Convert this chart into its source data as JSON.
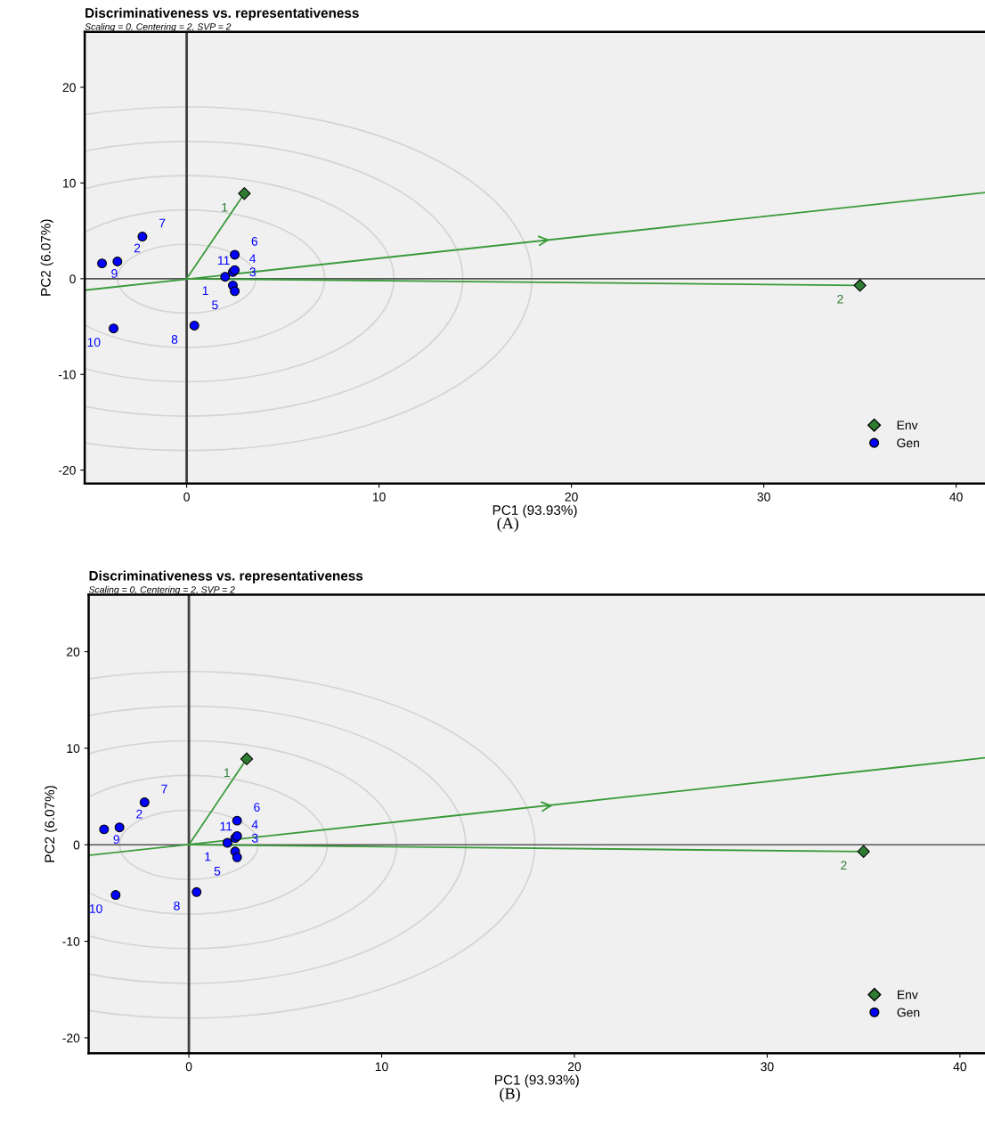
{
  "chart_data": [
    {
      "type": "scatter",
      "title": "Discriminativeness vs. representativeness",
      "subtitle": "Scaling = 0, Centering = 2, SVP = 2",
      "xlabel": "PC1 (93.93%)",
      "ylabel": "PC2 (6.07%)",
      "xlim": [
        -5.3,
        41.5
      ],
      "ylim": [
        -21.4,
        25.8
      ],
      "xticks": [
        0,
        10,
        20,
        30,
        40
      ],
      "yticks": [
        -20,
        -10,
        0,
        10,
        20
      ],
      "grid": false,
      "legend": "bottom right",
      "ref_lines": [
        {
          "axis": "x",
          "value": 0,
          "color": "#404040"
        },
        {
          "axis": "y",
          "value": 0,
          "color": "#555555"
        }
      ],
      "series": [
        {
          "type": "line",
          "color": "#3a9a3a",
          "x": [
            -5.3,
            41.5
          ],
          "values": [
            -1.2,
            9.0
          ]
        },
        {
          "type": "line",
          "color": "#3a9a3a",
          "x": [
            0,
            3.0
          ],
          "values": [
            0,
            8.9
          ]
        },
        {
          "type": "line",
          "color": "#3a9a3a",
          "x": [
            0,
            35.0
          ],
          "values": [
            0,
            -0.7
          ]
        },
        {
          "type": "scatter",
          "name": "Env",
          "color": "#2e7d32",
          "marker": "diamond",
          "x": [
            3.0,
            35.0
          ],
          "values": [
            8.9,
            -0.7
          ]
        },
        {
          "type": "scatter",
          "name": "Gen",
          "color": "#0000ff",
          "marker": "circle",
          "x": [
            2.0,
            -3.6,
            2.4,
            2.4,
            2.5,
            2.5,
            -2.3,
            0.4,
            -4.4,
            -3.8,
            2.5
          ],
          "values": [
            0.2,
            1.8,
            -0.7,
            0.7,
            -1.3,
            2.5,
            4.4,
            -4.9,
            1.6,
            -5.2,
            0.9
          ]
        }
      ],
      "annotations": [
        {
          "text": "1",
          "x": 3.0,
          "y": 8.9
        },
        {
          "text": "2",
          "x": 35.0,
          "y": -0.7
        },
        {
          "text": "1",
          "x": 2.0,
          "y": 0.2
        },
        {
          "text": "2",
          "x": -3.6,
          "y": 1.8
        },
        {
          "text": "3",
          "x": 2.4,
          "y": -0.7
        },
        {
          "text": "4",
          "x": 2.4,
          "y": 0.7
        },
        {
          "text": "5",
          "x": 2.5,
          "y": -1.3
        },
        {
          "text": "6",
          "x": 2.5,
          "y": 2.5
        },
        {
          "text": "7",
          "x": -2.3,
          "y": 4.4
        },
        {
          "text": "8",
          "x": 0.4,
          "y": -4.9
        },
        {
          "text": "9",
          "x": -4.4,
          "y": 1.6
        },
        {
          "text": "10",
          "x": -3.8,
          "y": -5.2
        },
        {
          "text": "11",
          "x": 2.5,
          "y": 0.9
        },
        "(A)"
      ]
    },
    {
      "type": "scatter",
      "title": "Discriminativeness vs. representativeness",
      "subtitle": "Scaling = 0, Centering = 2, SVP = 2",
      "xlabel": "PC1 (93.93%)",
      "ylabel": "PC2 (6.07%)",
      "xlim": [
        -5.2,
        41.3
      ],
      "ylim": [
        -21.6,
        25.9
      ],
      "xticks": [
        0,
        10,
        20,
        30,
        40
      ],
      "yticks": [
        -20,
        -10,
        0,
        10,
        20
      ],
      "grid": false,
      "legend": "bottom right",
      "ref_lines": [
        {
          "axis": "x",
          "value": 0,
          "color": "#404040"
        },
        {
          "axis": "y",
          "value": 0,
          "color": "#555555"
        }
      ],
      "series": [
        {
          "type": "line",
          "color": "#3a9a3a",
          "x": [
            -5.2,
            41.3
          ],
          "values": [
            -1.1,
            9.0
          ]
        },
        {
          "type": "line",
          "color": "#3a9a3a",
          "x": [
            0,
            3.0
          ],
          "values": [
            0,
            8.9
          ]
        },
        {
          "type": "line",
          "color": "#3a9a3a",
          "x": [
            0,
            35.0
          ],
          "values": [
            0,
            -0.7
          ]
        },
        {
          "type": "scatter",
          "name": "Env",
          "color": "#2e7d32",
          "marker": "diamond",
          "x": [
            3.0,
            35.0
          ],
          "values": [
            8.9,
            -0.7
          ]
        },
        {
          "type": "scatter",
          "name": "Gen",
          "color": "#0000ff",
          "marker": "circle",
          "x": [
            2.0,
            -3.6,
            2.4,
            2.4,
            2.5,
            2.5,
            -2.3,
            0.4,
            -4.4,
            -3.8,
            2.5
          ],
          "values": [
            0.2,
            1.8,
            -0.7,
            0.7,
            -1.3,
            2.5,
            4.4,
            -4.9,
            1.6,
            -5.2,
            0.9
          ]
        }
      ],
      "annotations": [
        {
          "text": "1",
          "x": 3.0,
          "y": 8.9
        },
        {
          "text": "2",
          "x": 35.0,
          "y": -0.7
        },
        {
          "text": "1",
          "x": 2.0,
          "y": 0.2
        },
        {
          "text": "2",
          "x": -3.6,
          "y": 1.8
        },
        {
          "text": "3",
          "x": 2.4,
          "y": -0.7
        },
        {
          "text": "4",
          "x": 2.4,
          "y": 0.7
        },
        {
          "text": "5",
          "x": 2.5,
          "y": -1.3
        },
        {
          "text": "6",
          "x": 2.5,
          "y": 2.5
        },
        {
          "text": "7",
          "x": -2.3,
          "y": 4.4
        },
        {
          "text": "8",
          "x": 0.4,
          "y": -4.9
        },
        {
          "text": "9",
          "x": -4.4,
          "y": 1.6
        },
        {
          "text": "10",
          "x": -3.8,
          "y": -5.2
        },
        {
          "text": "11",
          "x": 2.5,
          "y": 0.9
        },
        "(B)"
      ]
    }
  ]
}
